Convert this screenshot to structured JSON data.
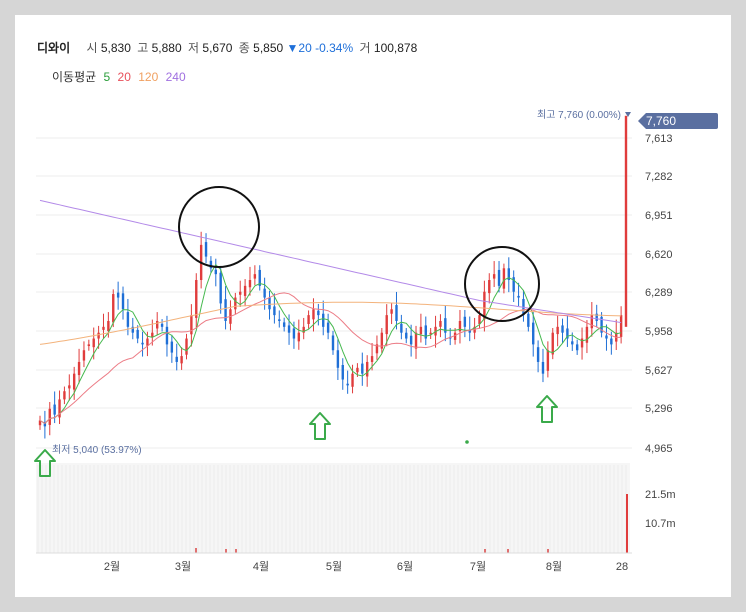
{
  "stock": {
    "name": "디와이",
    "open_label": "시",
    "open": "5,830",
    "high_label": "고",
    "high": "5,880",
    "low_label": "저",
    "low": "5,670",
    "close_label": "종",
    "close": "5,850",
    "change_arrow": "▼",
    "change": "20",
    "change_pct": "-0.34%",
    "volume_label": "거",
    "volume": "100,878"
  },
  "ma_legend": {
    "title": "이동평균",
    "items": [
      {
        "label": "5",
        "color": "#2a9d3a"
      },
      {
        "label": "20",
        "color": "#e8505b"
      },
      {
        "label": "120",
        "color": "#f0a060"
      },
      {
        "label": "240",
        "color": "#a070e0"
      }
    ]
  },
  "colors": {
    "up": "#e03c3c",
    "down": "#1f6fd6",
    "grid": "#eeeeee",
    "price_tag": "#5a6fa0",
    "highlight_circle": "#111111",
    "arrow": "#3aaa4a"
  },
  "annotations": {
    "high_text": "최고 7,760 (0.00%)",
    "low_text": "최저 5,040 (53.97%)",
    "current_price": "7,760"
  },
  "chart_data": {
    "type": "candlestick",
    "y_axis": {
      "ticks": [
        7613,
        7282,
        6951,
        6620,
        6289,
        5958,
        5627,
        5296,
        4965
      ],
      "range": [
        4965,
        7760
      ]
    },
    "x_axis": {
      "labels": [
        "2월",
        "3월",
        "4월",
        "5월",
        "6월",
        "7월",
        "8월",
        "28"
      ]
    },
    "volume_axis": {
      "ticks": [
        "21.5m",
        "10.7m"
      ]
    },
    "period_high": 7760,
    "period_low": 5040,
    "last_price": 7760,
    "approx_close_path": [
      5200,
      5150,
      5300,
      5250,
      5380,
      5450,
      5500,
      5600,
      5700,
      5800,
      5850,
      5900,
      5950,
      6000,
      6050,
      6280,
      6250,
      6150,
      6000,
      5950,
      5900,
      5850,
      5900,
      5950,
      6050,
      6000,
      5850,
      5780,
      5700,
      5750,
      5900,
      6100,
      6400,
      6700,
      6600,
      6500,
      6450,
      6200,
      6050,
      6150,
      6250,
      6300,
      6350,
      6400,
      6450,
      6350,
      6250,
      6150,
      6100,
      6050,
      6000,
      5950,
      5900,
      5950,
      6000,
      6100,
      6150,
      6100,
      6000,
      5950,
      5800,
      5650,
      5550,
      5500,
      5600,
      5650,
      5600,
      5700,
      5750,
      5850,
      5950,
      6100,
      6150,
      6050,
      5950,
      5900,
      5850,
      5950,
      6000,
      5900,
      5950,
      6000,
      6050,
      5950,
      5900,
      5950,
      6050,
      6000,
      5950,
      6000,
      6100,
      6300,
      6400,
      6450,
      6350,
      6500,
      6400,
      6300,
      6250,
      6100,
      6000,
      5850,
      5700,
      5600,
      5800,
      5950,
      6000,
      5950,
      5900,
      5850,
      5800,
      5900,
      6000,
      6100,
      6050,
      5950,
      5900,
      5850,
      5950,
      6100,
      7760
    ]
  }
}
